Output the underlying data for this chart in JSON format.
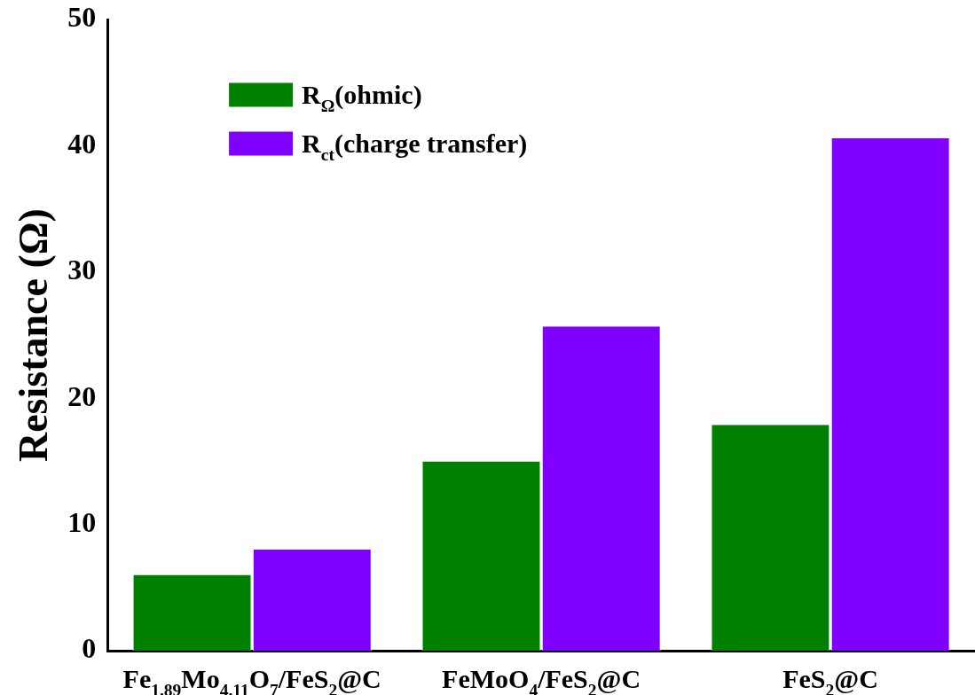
{
  "chart_data": {
    "type": "bar",
    "ylabel": "Resistance (Ω)",
    "categories": [
      "Fe$_{1.89}$Mo$_{4.11}$O$_{7}$/FeS$_{2}$@C",
      "FeMoO$_{4}$/FeS$_{2}$@C",
      "FeS$_{2}$@C"
    ],
    "series": [
      {
        "name": "R$_{Ω}$(ohmic)",
        "color": "#008000",
        "values": [
          6,
          15,
          17.9
        ]
      },
      {
        "name": "R$_{ct}$(charge transfer)",
        "color": "#8000ff",
        "values": [
          8,
          25.7,
          40.6
        ]
      }
    ],
    "ylim": [
      0,
      50
    ],
    "yticks": [
      0,
      10,
      20,
      30,
      40,
      50
    ],
    "grid": false,
    "legend": "top left"
  }
}
